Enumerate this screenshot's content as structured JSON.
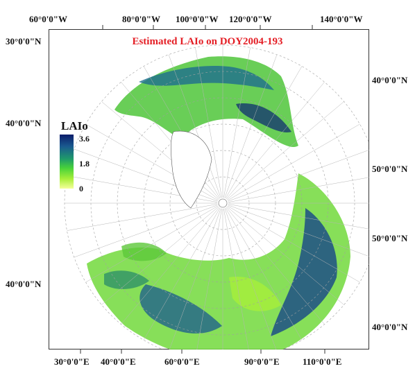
{
  "map": {
    "title": "Estimated LAIo on DOY2004-193",
    "top_labels": [
      "60°0'0\"W",
      "80°0'0\"W",
      "100°0'0\"W",
      "120°0'0\"W",
      "140°0'0\"W"
    ],
    "bottom_labels": [
      "30°0'0\"E",
      "40°0'0\"E",
      "60°0'0\"E",
      "90°0'0\"E",
      "110°0'0\"E"
    ],
    "left_labels": [
      "30°0'0\"N",
      "40°0'0\"N",
      "40°0'0\"N"
    ],
    "right_labels": [
      "40°0'0\"N",
      "50°0'0\"N",
      "50°0'0\"N",
      "40°0'0\"N"
    ]
  },
  "legend": {
    "title": "LAIo",
    "max": "3.6",
    "mid": "1.8",
    "min": "0",
    "colors": [
      "#0b1c6a",
      "#1a5a8f",
      "#1f9a6a",
      "#48d23a",
      "#a8ef3a",
      "#f4ff9a"
    ]
  }
}
